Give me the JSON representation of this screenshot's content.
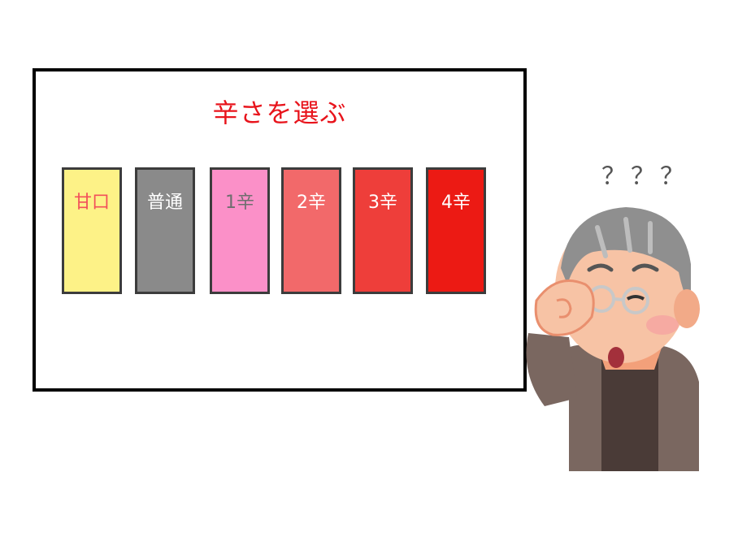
{
  "title": "辛さを選ぶ",
  "levels": [
    {
      "label": "甘口",
      "bg": "#fdf287",
      "fg": "#f2505a"
    },
    {
      "label": "普通",
      "bg": "#8a8a8a",
      "fg": "#ffffff"
    },
    {
      "label": "1辛",
      "bg": "#fb90c8",
      "fg": "#6e6e6e"
    },
    {
      "label": "2辛",
      "bg": "#f2696a",
      "fg": "#ffffff"
    },
    {
      "label": "3辛",
      "bg": "#ee3e3a",
      "fg": "#ffffff"
    },
    {
      "label": "4辛",
      "bg": "#ec1a14",
      "fg": "#ffffff"
    }
  ],
  "question": "？？？"
}
